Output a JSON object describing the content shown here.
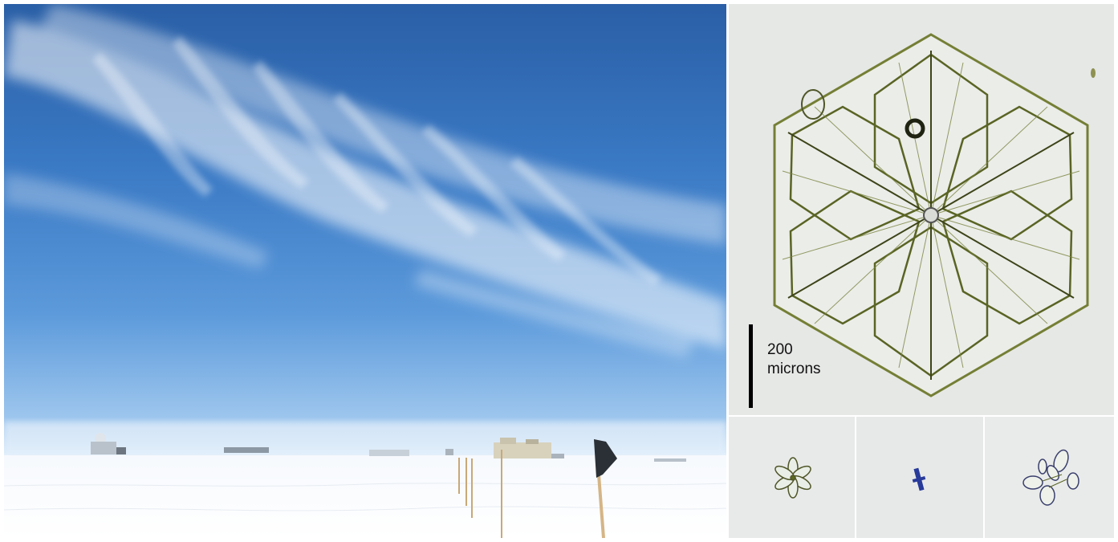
{
  "scale": {
    "value": "200",
    "unit": "microns"
  },
  "colors": {
    "sky_top": "#2a5fa6",
    "sky_horizon": "#d9ebfb",
    "snow": "#ffffff",
    "crystal_background": "#e6e8e6",
    "crystal_outline": "#6f7a2c",
    "scalebar": "#000000"
  }
}
